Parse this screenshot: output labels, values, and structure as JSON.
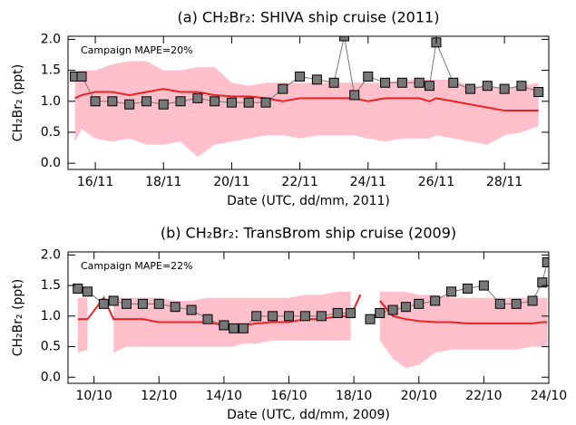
{
  "chart_data": [
    {
      "type": "line",
      "title": "(a) CH₂Br₂: SHIVA ship cruise (2011)",
      "x_label": "Date (UTC, dd/mm, 2011)",
      "y_label": "CH₂Br₂ (ppt)",
      "annotation": "Campaign MAPE=20%",
      "xlim": [
        15.2,
        29.3
      ],
      "ylim": [
        -0.1,
        2.05
      ],
      "xticks": [
        {
          "value": 16,
          "label": "16/11"
        },
        {
          "value": 18,
          "label": "18/11"
        },
        {
          "value": 20,
          "label": "20/11"
        },
        {
          "value": 22,
          "label": "22/11"
        },
        {
          "value": 24,
          "label": "24/11"
        },
        {
          "value": 26,
          "label": "26/11"
        },
        {
          "value": 28,
          "label": "28/11"
        }
      ],
      "yticks": [
        {
          "value": 0,
          "label": "0.0"
        },
        {
          "value": 0.5,
          "label": "0.5"
        },
        {
          "value": 1,
          "label": "1.0"
        },
        {
          "value": 1.5,
          "label": "1.5"
        },
        {
          "value": 2,
          "label": "2.0"
        }
      ],
      "x": [
        15.4,
        15.6,
        16.0,
        16.5,
        17.0,
        17.5,
        18.0,
        18.5,
        19.0,
        19.5,
        20.0,
        20.5,
        21.0,
        21.5,
        22.0,
        22.5,
        23.0,
        23.3,
        23.6,
        24.0,
        24.5,
        25.0,
        25.5,
        25.8,
        26.0,
        26.5,
        27.0,
        27.5,
        28.0,
        28.5,
        29.0
      ],
      "observed": {
        "color": "#777777",
        "values": [
          1.4,
          1.4,
          1.0,
          1.0,
          0.95,
          1.0,
          0.95,
          1.0,
          1.05,
          1.0,
          0.98,
          0.98,
          0.98,
          1.2,
          1.4,
          1.35,
          1.3,
          2.05,
          1.1,
          1.4,
          1.3,
          1.3,
          1.3,
          1.25,
          1.95,
          1.3,
          1.2,
          1.25,
          1.2,
          1.25,
          1.15
        ]
      },
      "model": {
        "color": "#ee2222",
        "values": [
          1.05,
          1.1,
          1.15,
          1.15,
          1.1,
          1.15,
          1.2,
          1.15,
          1.15,
          1.1,
          1.08,
          1.08,
          1.05,
          1.0,
          1.05,
          1.05,
          1.05,
          1.05,
          1.05,
          1.0,
          1.05,
          1.05,
          1.05,
          1.0,
          1.05,
          1.0,
          0.95,
          0.9,
          0.85,
          0.85,
          0.85
        ]
      },
      "range": {
        "color": "#ffc0cb",
        "upper": [
          1.45,
          1.5,
          1.5,
          1.6,
          1.65,
          1.65,
          1.5,
          1.5,
          1.55,
          1.55,
          1.3,
          1.25,
          1.3,
          1.3,
          1.3,
          1.3,
          1.3,
          1.3,
          1.3,
          1.3,
          1.3,
          1.35,
          1.35,
          1.35,
          1.35,
          1.35,
          1.25,
          1.25,
          1.2,
          1.25,
          1.3
        ],
        "lower": [
          0.35,
          0.55,
          0.4,
          0.35,
          0.4,
          0.3,
          0.3,
          0.35,
          0.1,
          0.3,
          0.35,
          0.4,
          0.45,
          0.45,
          0.4,
          0.45,
          0.45,
          0.45,
          0.45,
          0.4,
          0.35,
          0.4,
          0.4,
          0.4,
          0.45,
          0.4,
          0.35,
          0.3,
          0.45,
          0.5,
          0.6
        ]
      }
    },
    {
      "type": "line",
      "title": "(b) CH₂Br₂: TransBrom ship cruise (2009)",
      "x_label": "Date (UTC, dd/mm, 2009)",
      "y_label": "CH₂Br₂ (ppt)",
      "annotation": "Campaign MAPE=22%",
      "xlim": [
        9.2,
        24.0
      ],
      "ylim": [
        -0.1,
        2.05
      ],
      "xticks": [
        {
          "value": 10,
          "label": "10/10"
        },
        {
          "value": 12,
          "label": "12/10"
        },
        {
          "value": 14,
          "label": "14/10"
        },
        {
          "value": 16,
          "label": "16/10"
        },
        {
          "value": 18,
          "label": "18/10"
        },
        {
          "value": 20,
          "label": "20/10"
        },
        {
          "value": 22,
          "label": "22/10"
        },
        {
          "value": 24,
          "label": "24/10"
        }
      ],
      "yticks": [
        {
          "value": 0,
          "label": "0.0"
        },
        {
          "value": 0.5,
          "label": "0.5"
        },
        {
          "value": 1,
          "label": "1.0"
        },
        {
          "value": 1.5,
          "label": "1.5"
        },
        {
          "value": 2,
          "label": "2.0"
        }
      ],
      "x": [
        9.5,
        9.8,
        10.3,
        10.6,
        11,
        11.5,
        12,
        12.5,
        13,
        13.5,
        14,
        14.3,
        14.6,
        15,
        15.5,
        16,
        16.5,
        17,
        17.5,
        17.9,
        18.2,
        18.5,
        18.8,
        19.2,
        19.6,
        20,
        20.5,
        21,
        21.5,
        22,
        22.5,
        23,
        23.5,
        23.8,
        23.95
      ],
      "observed": {
        "color": "#777777",
        "values": [
          1.45,
          1.4,
          1.2,
          1.25,
          1.2,
          1.2,
          1.2,
          1.15,
          1.1,
          0.95,
          0.85,
          0.8,
          0.8,
          1.0,
          1.0,
          1.0,
          1.0,
          1.0,
          1.05,
          1.05,
          null,
          0.95,
          1.05,
          1.1,
          1.15,
          1.2,
          1.25,
          1.4,
          1.45,
          1.5,
          1.2,
          1.2,
          1.25,
          1.55,
          1.88
        ]
      },
      "model": {
        "color": "#ee2222",
        "values": [
          0.95,
          0.95,
          1.3,
          0.95,
          0.95,
          0.95,
          0.9,
          0.9,
          0.9,
          0.9,
          0.85,
          0.85,
          0.85,
          0.88,
          0.9,
          0.9,
          0.95,
          0.95,
          1.0,
          1.0,
          1.35,
          null,
          1.25,
          1.0,
          0.95,
          0.92,
          0.9,
          0.9,
          0.88,
          0.88,
          0.88,
          0.88,
          0.88,
          0.9,
          0.9
        ]
      },
      "range": {
        "color": "#ffc0cb",
        "upper": [
          1.3,
          1.3,
          null,
          1.3,
          1.3,
          1.3,
          1.3,
          1.25,
          1.25,
          1.3,
          1.3,
          1.3,
          1.3,
          1.3,
          1.3,
          1.3,
          1.35,
          1.35,
          1.4,
          1.4,
          null,
          null,
          1.4,
          1.4,
          1.4,
          1.35,
          1.35,
          1.3,
          1.3,
          1.3,
          1.3,
          1.3,
          1.3,
          1.3,
          1.3
        ],
        "lower": [
          0.4,
          0.45,
          null,
          0.4,
          0.5,
          0.5,
          0.5,
          0.5,
          0.5,
          0.5,
          0.5,
          0.5,
          0.55,
          0.55,
          0.6,
          0.6,
          0.6,
          0.6,
          0.6,
          0.6,
          null,
          null,
          0.6,
          0.3,
          0.15,
          0.2,
          0.4,
          0.45,
          0.45,
          0.45,
          0.45,
          0.45,
          0.5,
          0.5,
          0.5
        ]
      }
    }
  ]
}
